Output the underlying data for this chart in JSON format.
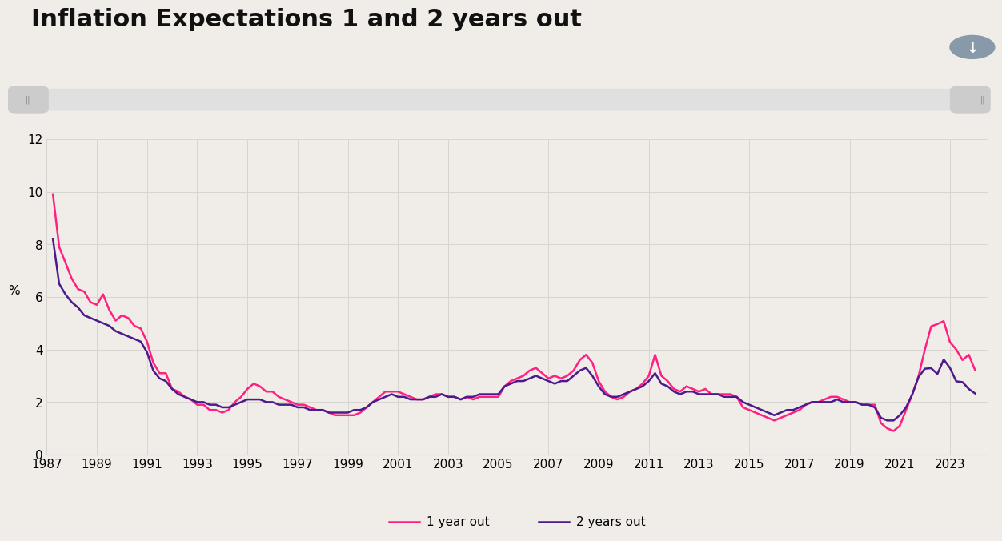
{
  "title": "Inflation Expectations 1 and 2 years out",
  "ylabel": "%",
  "background_color": "#f0ede8",
  "plot_bg_color": "#f0ede8",
  "grid_color": "#d8d5d0",
  "line1_color": "#ff2080",
  "line2_color": "#4b1a8c",
  "line1_label": "1 year out",
  "line2_label": "2 years out",
  "ylim": [
    0,
    12
  ],
  "yticks": [
    0,
    2,
    4,
    6,
    8,
    10,
    12
  ],
  "xlim_start": 1987.0,
  "xlim_end": 2024.5,
  "title_fontsize": 22,
  "axis_fontsize": 11,
  "legend_fontsize": 11,
  "data_1yr": [
    [
      1987.25,
      9.9
    ],
    [
      1987.5,
      7.9
    ],
    [
      1987.75,
      7.3
    ],
    [
      1988.0,
      6.7
    ],
    [
      1988.25,
      6.3
    ],
    [
      1988.5,
      6.2
    ],
    [
      1988.75,
      5.8
    ],
    [
      1989.0,
      5.7
    ],
    [
      1989.25,
      6.1
    ],
    [
      1989.5,
      5.5
    ],
    [
      1989.75,
      5.1
    ],
    [
      1990.0,
      5.3
    ],
    [
      1990.25,
      5.2
    ],
    [
      1990.5,
      4.9
    ],
    [
      1990.75,
      4.8
    ],
    [
      1991.0,
      4.3
    ],
    [
      1991.25,
      3.5
    ],
    [
      1991.5,
      3.1
    ],
    [
      1991.75,
      3.1
    ],
    [
      1992.0,
      2.5
    ],
    [
      1992.25,
      2.4
    ],
    [
      1992.5,
      2.2
    ],
    [
      1992.75,
      2.1
    ],
    [
      1993.0,
      1.9
    ],
    [
      1993.25,
      1.9
    ],
    [
      1993.5,
      1.7
    ],
    [
      1993.75,
      1.7
    ],
    [
      1994.0,
      1.6
    ],
    [
      1994.25,
      1.7
    ],
    [
      1994.5,
      2.0
    ],
    [
      1994.75,
      2.2
    ],
    [
      1995.0,
      2.5
    ],
    [
      1995.25,
      2.7
    ],
    [
      1995.5,
      2.6
    ],
    [
      1995.75,
      2.4
    ],
    [
      1996.0,
      2.4
    ],
    [
      1996.25,
      2.2
    ],
    [
      1996.5,
      2.1
    ],
    [
      1996.75,
      2.0
    ],
    [
      1997.0,
      1.9
    ],
    [
      1997.25,
      1.9
    ],
    [
      1997.5,
      1.8
    ],
    [
      1997.75,
      1.7
    ],
    [
      1998.0,
      1.7
    ],
    [
      1998.25,
      1.6
    ],
    [
      1998.5,
      1.5
    ],
    [
      1998.75,
      1.5
    ],
    [
      1999.0,
      1.5
    ],
    [
      1999.25,
      1.5
    ],
    [
      1999.5,
      1.6
    ],
    [
      1999.75,
      1.8
    ],
    [
      2000.0,
      2.0
    ],
    [
      2000.25,
      2.2
    ],
    [
      2000.5,
      2.4
    ],
    [
      2000.75,
      2.4
    ],
    [
      2001.0,
      2.4
    ],
    [
      2001.25,
      2.3
    ],
    [
      2001.5,
      2.2
    ],
    [
      2001.75,
      2.1
    ],
    [
      2002.0,
      2.1
    ],
    [
      2002.25,
      2.2
    ],
    [
      2002.5,
      2.3
    ],
    [
      2002.75,
      2.3
    ],
    [
      2003.0,
      2.2
    ],
    [
      2003.25,
      2.2
    ],
    [
      2003.5,
      2.1
    ],
    [
      2003.75,
      2.2
    ],
    [
      2004.0,
      2.1
    ],
    [
      2004.25,
      2.2
    ],
    [
      2004.5,
      2.2
    ],
    [
      2004.75,
      2.2
    ],
    [
      2005.0,
      2.2
    ],
    [
      2005.25,
      2.6
    ],
    [
      2005.5,
      2.8
    ],
    [
      2005.75,
      2.9
    ],
    [
      2006.0,
      3.0
    ],
    [
      2006.25,
      3.2
    ],
    [
      2006.5,
      3.3
    ],
    [
      2006.75,
      3.1
    ],
    [
      2007.0,
      2.9
    ],
    [
      2007.25,
      3.0
    ],
    [
      2007.5,
      2.9
    ],
    [
      2007.75,
      3.0
    ],
    [
      2008.0,
      3.2
    ],
    [
      2008.25,
      3.6
    ],
    [
      2008.5,
      3.8
    ],
    [
      2008.75,
      3.5
    ],
    [
      2009.0,
      2.8
    ],
    [
      2009.25,
      2.4
    ],
    [
      2009.5,
      2.2
    ],
    [
      2009.75,
      2.1
    ],
    [
      2010.0,
      2.2
    ],
    [
      2010.25,
      2.4
    ],
    [
      2010.5,
      2.5
    ],
    [
      2010.75,
      2.7
    ],
    [
      2011.0,
      3.0
    ],
    [
      2011.25,
      3.8
    ],
    [
      2011.5,
      3.0
    ],
    [
      2011.75,
      2.8
    ],
    [
      2012.0,
      2.5
    ],
    [
      2012.25,
      2.4
    ],
    [
      2012.5,
      2.6
    ],
    [
      2012.75,
      2.5
    ],
    [
      2013.0,
      2.4
    ],
    [
      2013.25,
      2.5
    ],
    [
      2013.5,
      2.3
    ],
    [
      2013.75,
      2.3
    ],
    [
      2014.0,
      2.3
    ],
    [
      2014.25,
      2.3
    ],
    [
      2014.5,
      2.2
    ],
    [
      2014.75,
      1.8
    ],
    [
      2015.0,
      1.7
    ],
    [
      2015.25,
      1.6
    ],
    [
      2015.5,
      1.5
    ],
    [
      2015.75,
      1.4
    ],
    [
      2016.0,
      1.3
    ],
    [
      2016.25,
      1.4
    ],
    [
      2016.5,
      1.5
    ],
    [
      2016.75,
      1.6
    ],
    [
      2017.0,
      1.7
    ],
    [
      2017.25,
      1.9
    ],
    [
      2017.5,
      2.0
    ],
    [
      2017.75,
      2.0
    ],
    [
      2018.0,
      2.1
    ],
    [
      2018.25,
      2.2
    ],
    [
      2018.5,
      2.2
    ],
    [
      2018.75,
      2.1
    ],
    [
      2019.0,
      2.0
    ],
    [
      2019.25,
      2.0
    ],
    [
      2019.5,
      1.9
    ],
    [
      2019.75,
      1.9
    ],
    [
      2020.0,
      1.9
    ],
    [
      2020.25,
      1.2
    ],
    [
      2020.5,
      1.0
    ],
    [
      2020.75,
      0.9
    ],
    [
      2021.0,
      1.1
    ],
    [
      2021.25,
      1.7
    ],
    [
      2021.5,
      2.3
    ],
    [
      2021.75,
      3.0
    ],
    [
      2022.0,
      4.0
    ],
    [
      2022.25,
      4.88
    ],
    [
      2022.5,
      4.97
    ],
    [
      2022.75,
      5.08
    ],
    [
      2023.0,
      4.28
    ],
    [
      2023.25,
      4.0
    ],
    [
      2023.5,
      3.6
    ],
    [
      2023.75,
      3.8
    ],
    [
      2024.0,
      3.22
    ]
  ],
  "data_2yr": [
    [
      1987.25,
      8.2
    ],
    [
      1987.5,
      6.5
    ],
    [
      1987.75,
      6.1
    ],
    [
      1988.0,
      5.8
    ],
    [
      1988.25,
      5.6
    ],
    [
      1988.5,
      5.3
    ],
    [
      1988.75,
      5.2
    ],
    [
      1989.0,
      5.1
    ],
    [
      1989.25,
      5.0
    ],
    [
      1989.5,
      4.9
    ],
    [
      1989.75,
      4.7
    ],
    [
      1990.0,
      4.6
    ],
    [
      1990.25,
      4.5
    ],
    [
      1990.5,
      4.4
    ],
    [
      1990.75,
      4.3
    ],
    [
      1991.0,
      3.9
    ],
    [
      1991.25,
      3.2
    ],
    [
      1991.5,
      2.9
    ],
    [
      1991.75,
      2.8
    ],
    [
      1992.0,
      2.5
    ],
    [
      1992.25,
      2.3
    ],
    [
      1992.5,
      2.2
    ],
    [
      1992.75,
      2.1
    ],
    [
      1993.0,
      2.0
    ],
    [
      1993.25,
      2.0
    ],
    [
      1993.5,
      1.9
    ],
    [
      1993.75,
      1.9
    ],
    [
      1994.0,
      1.8
    ],
    [
      1994.25,
      1.8
    ],
    [
      1994.5,
      1.9
    ],
    [
      1994.75,
      2.0
    ],
    [
      1995.0,
      2.1
    ],
    [
      1995.25,
      2.1
    ],
    [
      1995.5,
      2.1
    ],
    [
      1995.75,
      2.0
    ],
    [
      1996.0,
      2.0
    ],
    [
      1996.25,
      1.9
    ],
    [
      1996.5,
      1.9
    ],
    [
      1996.75,
      1.9
    ],
    [
      1997.0,
      1.8
    ],
    [
      1997.25,
      1.8
    ],
    [
      1997.5,
      1.7
    ],
    [
      1997.75,
      1.7
    ],
    [
      1998.0,
      1.7
    ],
    [
      1998.25,
      1.6
    ],
    [
      1998.5,
      1.6
    ],
    [
      1998.75,
      1.6
    ],
    [
      1999.0,
      1.6
    ],
    [
      1999.25,
      1.7
    ],
    [
      1999.5,
      1.7
    ],
    [
      1999.75,
      1.8
    ],
    [
      2000.0,
      2.0
    ],
    [
      2000.25,
      2.1
    ],
    [
      2000.5,
      2.2
    ],
    [
      2000.75,
      2.3
    ],
    [
      2001.0,
      2.2
    ],
    [
      2001.25,
      2.2
    ],
    [
      2001.5,
      2.1
    ],
    [
      2001.75,
      2.1
    ],
    [
      2002.0,
      2.1
    ],
    [
      2002.25,
      2.2
    ],
    [
      2002.5,
      2.2
    ],
    [
      2002.75,
      2.3
    ],
    [
      2003.0,
      2.2
    ],
    [
      2003.25,
      2.2
    ],
    [
      2003.5,
      2.1
    ],
    [
      2003.75,
      2.2
    ],
    [
      2004.0,
      2.2
    ],
    [
      2004.25,
      2.3
    ],
    [
      2004.5,
      2.3
    ],
    [
      2004.75,
      2.3
    ],
    [
      2005.0,
      2.3
    ],
    [
      2005.25,
      2.6
    ],
    [
      2005.5,
      2.7
    ],
    [
      2005.75,
      2.8
    ],
    [
      2006.0,
      2.8
    ],
    [
      2006.25,
      2.9
    ],
    [
      2006.5,
      3.0
    ],
    [
      2006.75,
      2.9
    ],
    [
      2007.0,
      2.8
    ],
    [
      2007.25,
      2.7
    ],
    [
      2007.5,
      2.8
    ],
    [
      2007.75,
      2.8
    ],
    [
      2008.0,
      3.0
    ],
    [
      2008.25,
      3.2
    ],
    [
      2008.5,
      3.3
    ],
    [
      2008.75,
      3.0
    ],
    [
      2009.0,
      2.6
    ],
    [
      2009.25,
      2.3
    ],
    [
      2009.5,
      2.2
    ],
    [
      2009.75,
      2.2
    ],
    [
      2010.0,
      2.3
    ],
    [
      2010.25,
      2.4
    ],
    [
      2010.5,
      2.5
    ],
    [
      2010.75,
      2.6
    ],
    [
      2011.0,
      2.8
    ],
    [
      2011.25,
      3.1
    ],
    [
      2011.5,
      2.7
    ],
    [
      2011.75,
      2.6
    ],
    [
      2012.0,
      2.4
    ],
    [
      2012.25,
      2.3
    ],
    [
      2012.5,
      2.4
    ],
    [
      2012.75,
      2.4
    ],
    [
      2013.0,
      2.3
    ],
    [
      2013.25,
      2.3
    ],
    [
      2013.5,
      2.3
    ],
    [
      2013.75,
      2.3
    ],
    [
      2014.0,
      2.2
    ],
    [
      2014.25,
      2.2
    ],
    [
      2014.5,
      2.2
    ],
    [
      2014.75,
      2.0
    ],
    [
      2015.0,
      1.9
    ],
    [
      2015.25,
      1.8
    ],
    [
      2015.5,
      1.7
    ],
    [
      2015.75,
      1.6
    ],
    [
      2016.0,
      1.5
    ],
    [
      2016.25,
      1.6
    ],
    [
      2016.5,
      1.7
    ],
    [
      2016.75,
      1.7
    ],
    [
      2017.0,
      1.8
    ],
    [
      2017.25,
      1.9
    ],
    [
      2017.5,
      2.0
    ],
    [
      2017.75,
      2.0
    ],
    [
      2018.0,
      2.0
    ],
    [
      2018.25,
      2.0
    ],
    [
      2018.5,
      2.1
    ],
    [
      2018.75,
      2.0
    ],
    [
      2019.0,
      2.0
    ],
    [
      2019.25,
      2.0
    ],
    [
      2019.5,
      1.9
    ],
    [
      2019.75,
      1.9
    ],
    [
      2020.0,
      1.8
    ],
    [
      2020.25,
      1.4
    ],
    [
      2020.5,
      1.3
    ],
    [
      2020.75,
      1.3
    ],
    [
      2021.0,
      1.5
    ],
    [
      2021.25,
      1.8
    ],
    [
      2021.5,
      2.3
    ],
    [
      2021.75,
      2.96
    ],
    [
      2022.0,
      3.27
    ],
    [
      2022.25,
      3.29
    ],
    [
      2022.5,
      3.07
    ],
    [
      2022.75,
      3.62
    ],
    [
      2023.0,
      3.3
    ],
    [
      2023.25,
      2.79
    ],
    [
      2023.5,
      2.76
    ],
    [
      2023.75,
      2.5
    ],
    [
      2024.0,
      2.33
    ]
  ]
}
